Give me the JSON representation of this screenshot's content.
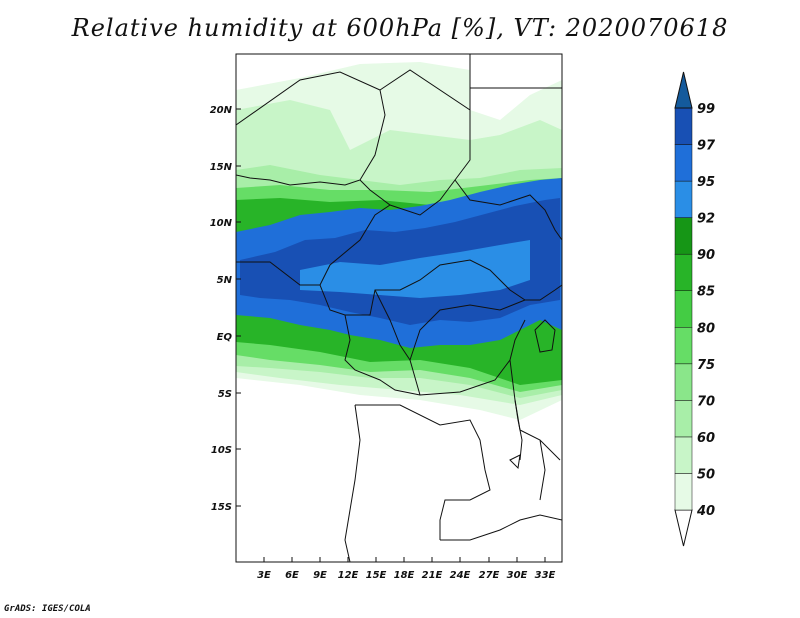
{
  "title": "Relative humidity at 600hPa [%], VT: 2020070618",
  "credit": "GrADS: IGES/COLA",
  "map": {
    "lat_labels": [
      "20N",
      "15N",
      "10N",
      "5N",
      "EQ",
      "5S",
      "10S",
      "15S"
    ],
    "lon_labels": [
      "3E",
      "6E",
      "9E",
      "12E",
      "15E",
      "18E",
      "21E",
      "24E",
      "27E",
      "30E",
      "33E"
    ]
  },
  "colorbar": {
    "levels": [
      "40",
      "50",
      "60",
      "70",
      "75",
      "80",
      "85",
      "90",
      "92",
      "95",
      "97",
      "99"
    ],
    "colors": [
      "#ffffff",
      "#e6fae6",
      "#c8f5c8",
      "#a8eea8",
      "#8ae68a",
      "#66dd66",
      "#44cc44",
      "#28b428",
      "#169616",
      "#2a8ee6",
      "#1f6fd9",
      "#1850b4",
      "#145a9c"
    ]
  }
}
